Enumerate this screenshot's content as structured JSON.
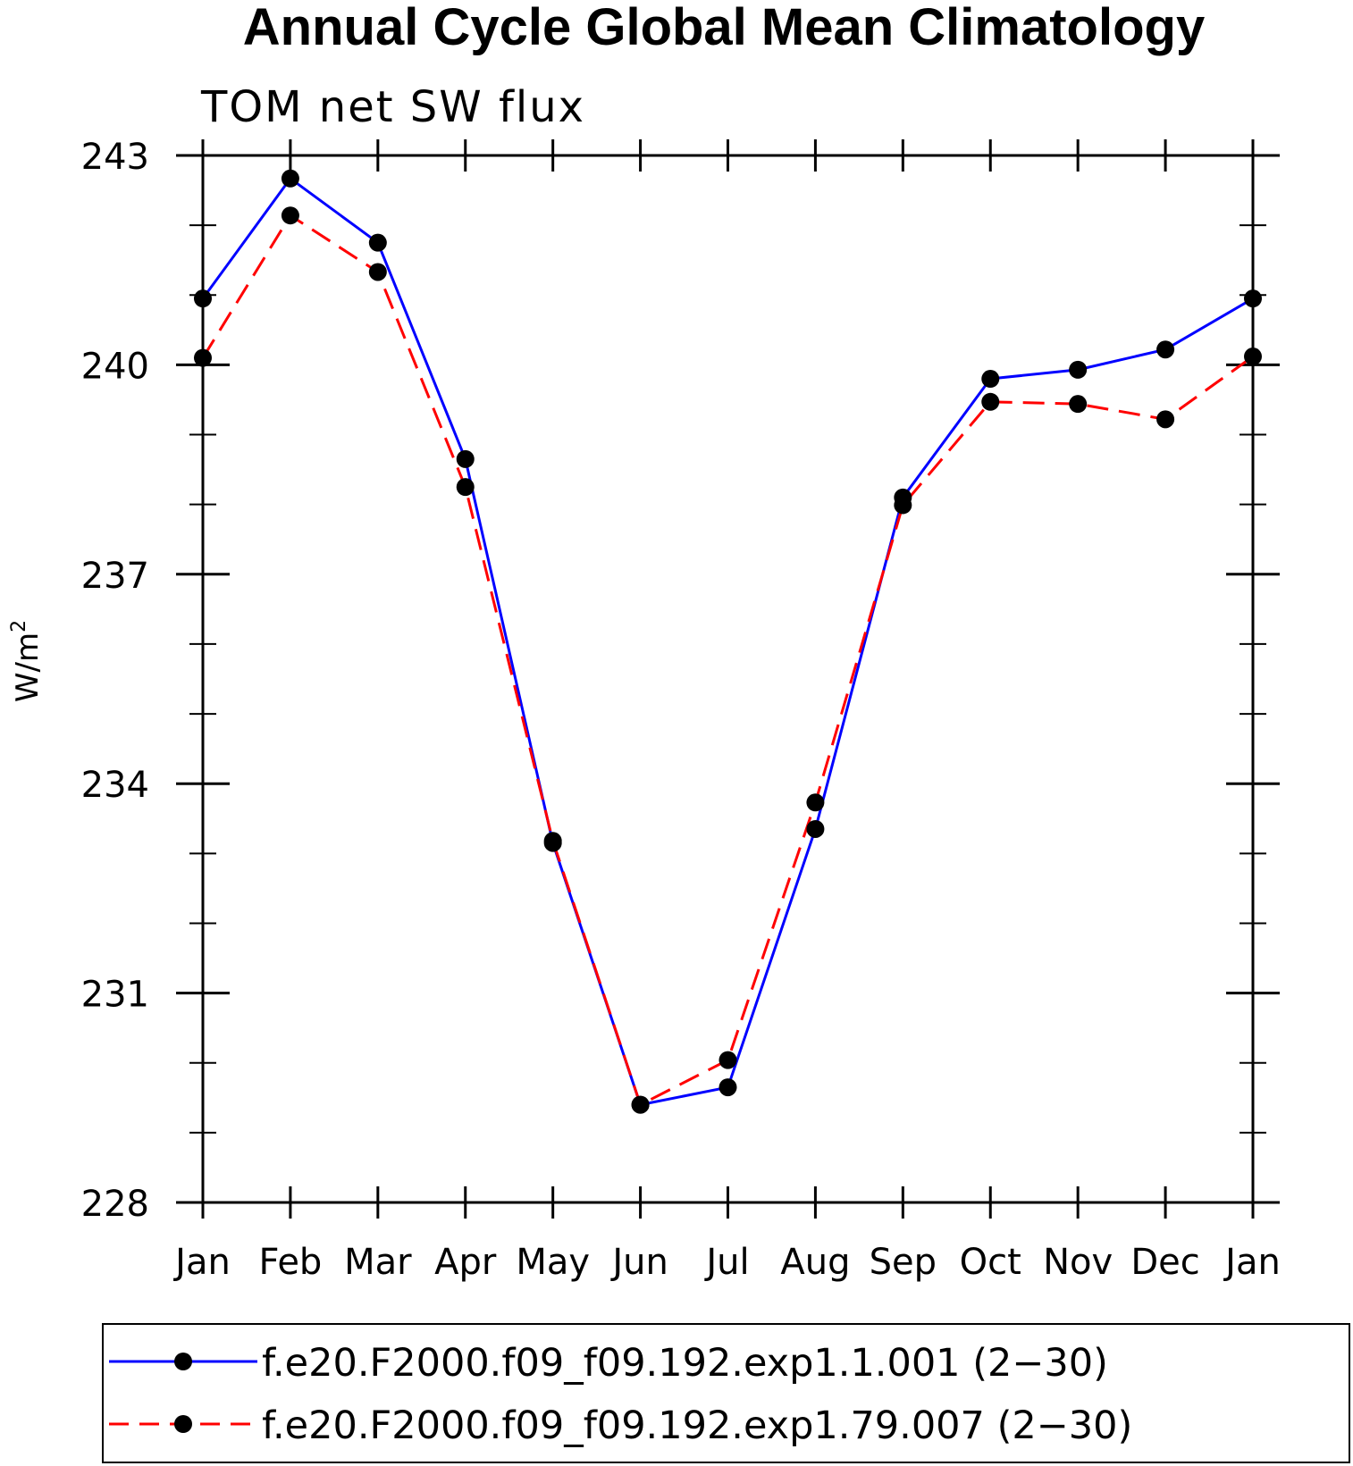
{
  "chart_data": {
    "type": "line",
    "title": "Annual Cycle Global Mean Climatology",
    "subtitle": "TOM net SW flux",
    "ylabel": "W/m",
    "ylabel_superscript": "2",
    "xlabel": "",
    "categories": [
      "Jan",
      "Feb",
      "Mar",
      "Apr",
      "May",
      "Jun",
      "Jul",
      "Aug",
      "Sep",
      "Oct",
      "Nov",
      "Dec",
      "Jan"
    ],
    "ylim": [
      228,
      243
    ],
    "yticks": [
      228,
      231,
      234,
      237,
      240,
      243
    ],
    "yticks_minor": [
      229,
      230,
      232,
      233,
      235,
      236,
      238,
      239,
      241,
      242
    ],
    "grid": false,
    "legend_position": "bottom",
    "series": [
      {
        "name": "f.e20.F2000.f09_f09.192.exp1.1.001 (2−30)",
        "color": "#0000ff",
        "line_style": "solid",
        "marker": "filled-circle",
        "values": [
          240.95,
          242.67,
          241.75,
          238.65,
          233.15,
          229.4,
          229.65,
          233.35,
          238.1,
          239.8,
          239.93,
          240.22,
          240.95
        ]
      },
      {
        "name": "f.e20.F2000.f09_f09.192.exp1.79.007 (2−30)",
        "color": "#ff0000",
        "line_style": "dashed",
        "marker": "filled-circle",
        "values": [
          240.1,
          242.14,
          241.33,
          238.25,
          233.18,
          229.4,
          230.04,
          233.73,
          237.99,
          239.47,
          239.44,
          239.22,
          240.12
        ]
      }
    ]
  }
}
